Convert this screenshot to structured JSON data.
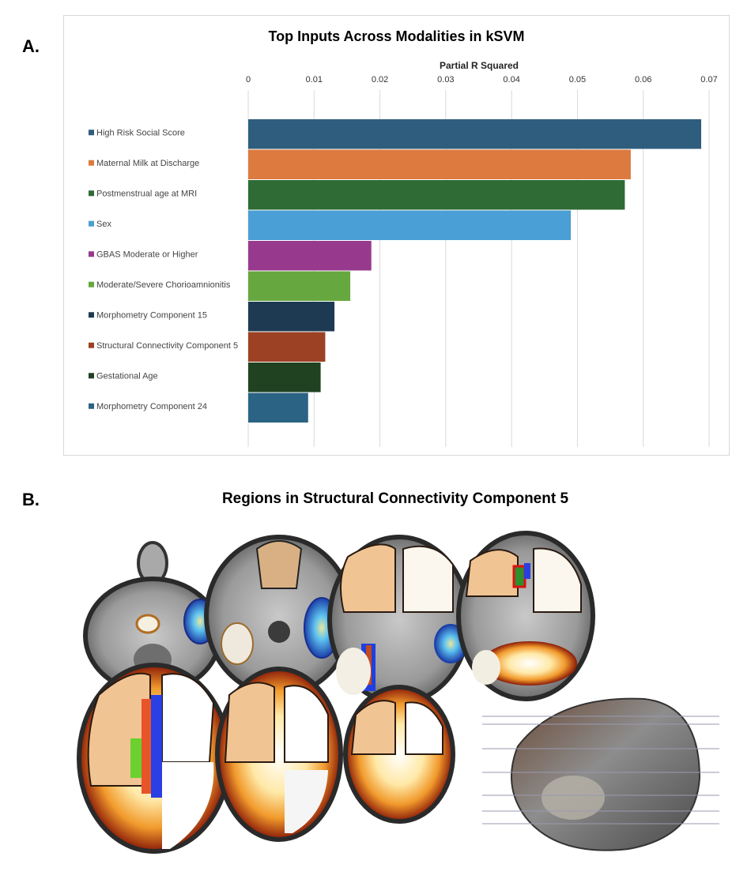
{
  "panel_a": {
    "letter": "A."
  },
  "panel_b": {
    "letter": "B.",
    "title": "Regions in Structural Connectivity Component 5"
  },
  "chart_data": {
    "type": "bar",
    "orientation": "horizontal",
    "title": "Top Inputs Across Modalities in kSVM",
    "xlabel": "Partial R Squared",
    "ylabel": "",
    "xlim": [
      0,
      0.07
    ],
    "xticks": [
      "0",
      "0.01",
      "0.02",
      "0.03",
      "0.04",
      "0.05",
      "0.06",
      "0.07"
    ],
    "grid": "vertical",
    "legend_position": "left",
    "categories": [
      "High Risk Social Score",
      "Maternal Milk at Discharge",
      "Postmenstrual age at MRI",
      "Sex",
      "GBAS Moderate or Higher",
      "Moderate/Severe Chorioamnionitis",
      "Morphometry Component 15",
      "Structural Connectivity Component 5",
      "Gestational Age",
      "Morphometry Component 24"
    ],
    "values": [
      0.0688,
      0.0581,
      0.0572,
      0.049,
      0.0187,
      0.0155,
      0.0131,
      0.0117,
      0.011,
      0.0091
    ],
    "colors": [
      "#2f5d7e",
      "#dd7a3f",
      "#2f6b35",
      "#4a9fd6",
      "#973a8e",
      "#66a83f",
      "#1d3a52",
      "#9c4123",
      "#214221",
      "#2b6384"
    ]
  }
}
